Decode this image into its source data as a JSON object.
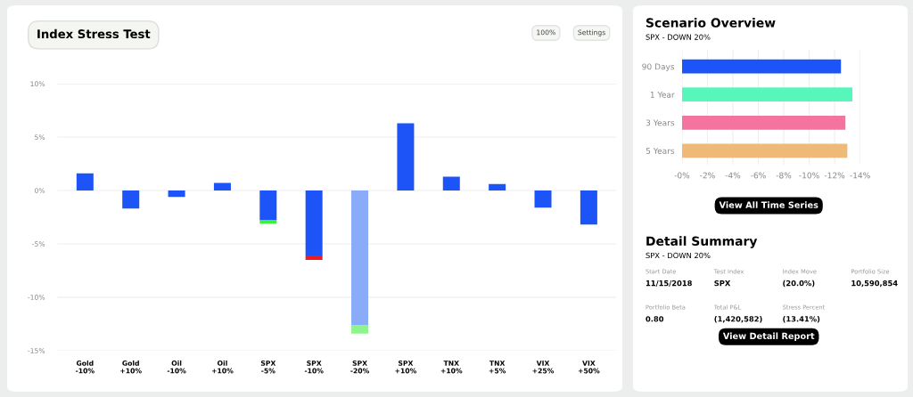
{
  "chart_data": [
    {
      "type": "bar",
      "title": "Index Stress Test",
      "annotations": [
        "100%",
        "Settings"
      ],
      "stacked": true,
      "categories": [
        "Gold\n-10%",
        "Gold\n+10%",
        "Oil\n-10%",
        "Oil\n+10%",
        "SPX\n-5%",
        "SPX\n-10%",
        "SPX\n-20%",
        "SPX\n+10%",
        "TNX\n+10%",
        "TNX\n+5%",
        "VIX\n+25%",
        "VIX\n+50%"
      ],
      "series": [
        {
          "colors": [
            "#1c54f7",
            "#1c54f7",
            "#1c54f7",
            "#1c54f7",
            "#1c54f7",
            "#1c54f7",
            "#8aabf7",
            "#1c54f7",
            "#1c54f7",
            "#1c54f7",
            "#1c54f7",
            "#1c54f7"
          ],
          "values": [
            1.6,
            -1.7,
            -0.6,
            0.7,
            -2.8,
            -6.1,
            -12.6,
            6.3,
            1.3,
            0.6,
            -1.6,
            -3.2
          ]
        },
        {
          "colors": [
            null,
            null,
            null,
            null,
            "#3ef03e",
            "#ee1c1c",
            "#8ef58e",
            null,
            null,
            null,
            null,
            null
          ],
          "values": [
            null,
            null,
            null,
            null,
            -0.3,
            -0.4,
            -0.8,
            null,
            null,
            null,
            null,
            null
          ]
        }
      ],
      "ylim": [
        -15,
        10
      ],
      "yticks": [
        {
          "value": 10,
          "label": "10%"
        },
        {
          "value": 5,
          "label": "5%"
        },
        {
          "value": 0,
          "label": "0%"
        },
        {
          "value": -5,
          "label": "-5%"
        },
        {
          "value": -10,
          "label": "-10%"
        },
        {
          "value": -15,
          "label": "-15%"
        }
      ],
      "grid": "y"
    },
    {
      "type": "bar",
      "title": "Scenario Overview",
      "subtitle": "SPX - DOWN 20%",
      "annotations": [
        "View All Time Series"
      ],
      "orientation": "horizontal",
      "categories": [
        "90 Days",
        "1 Year",
        "3 Years",
        "5 Years"
      ],
      "values": [
        -12.5,
        -13.4,
        -12.85,
        -13.0
      ],
      "colors": [
        "#1c54f7",
        "#57f7bc",
        "#f4739f",
        "#efb977"
      ],
      "xlim": [
        0,
        -14
      ],
      "xticks": [
        {
          "value": 0,
          "label": "-0%"
        },
        {
          "value": -2,
          "label": "-2%"
        },
        {
          "value": -4,
          "label": "-4%"
        },
        {
          "value": -6,
          "label": "-6%"
        },
        {
          "value": -8,
          "label": "-8%"
        },
        {
          "value": -10,
          "label": "-10%"
        },
        {
          "value": -12,
          "label": "-12%"
        },
        {
          "value": -14,
          "label": "-14%"
        }
      ],
      "grid": "x"
    },
    {
      "type": "other",
      "title": "Detail Summary",
      "subtitle": "SPX - DOWN 20%",
      "annotations": [
        "Start Date",
        "11/15/2018",
        "Test Index",
        "SPX",
        "Index Move",
        "(20.0%)",
        "Portfolio Size",
        "10,590,854",
        "Portfolio Beta",
        "0.80",
        "Total P&L",
        "(1,420,582)",
        "Stress Percent",
        "(13.41%)",
        "View Detail Report"
      ]
    }
  ]
}
